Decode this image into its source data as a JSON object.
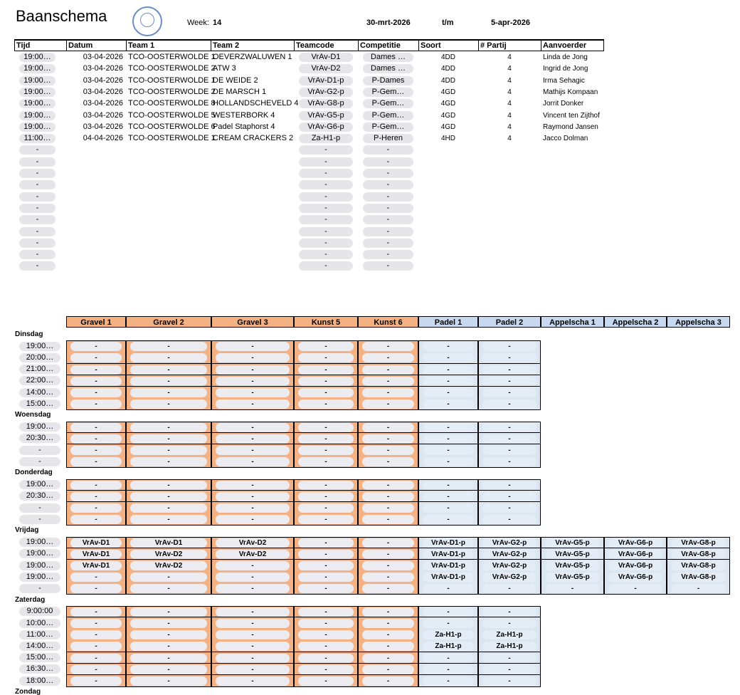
{
  "header": {
    "title": "Baanschema",
    "week_label": "Week:",
    "week": "14",
    "start": "30-mrt-2026",
    "through": "t/m",
    "end": "5-apr-2026"
  },
  "matches": {
    "columns": [
      "Tijd",
      "Datum",
      "Team 1",
      "Team 2",
      "Teamcode",
      "Competitie",
      "Soort",
      "# Partij",
      "Aanvoerder"
    ],
    "rows": [
      [
        "19:00…",
        "03-04-2026",
        "TCO-OOSTERWOLDE 1",
        "OEVERZWALUWEN 1",
        "VrAv-D1",
        "Dames …",
        "4DD",
        4,
        "Linda de Jong"
      ],
      [
        "19:00…",
        "03-04-2026",
        "TCO-OOSTERWOLDE 2",
        "ATW 3",
        "VrAv-D2",
        "Dames …",
        "4DD",
        4,
        "Ingrid de Jong"
      ],
      [
        "19:00…",
        "03-04-2026",
        "TCO-OOSTERWOLDE 1",
        "DE WEIDE 2",
        "VrAv-D1-p",
        "P-Dames",
        "4DD",
        4,
        "Irma Sehagic"
      ],
      [
        "19:00…",
        "03-04-2026",
        "TCO-OOSTERWOLDE 2",
        "DE MARSCH 1",
        "VrAv-G2-p",
        "P-Gem…",
        "4GD",
        4,
        "Mathijs Kompaan"
      ],
      [
        "19:00…",
        "03-04-2026",
        "TCO-OOSTERWOLDE 8",
        "HOLLANDSCHEVELD 4",
        "VrAv-G8-p",
        "P-Gem…",
        "4GD",
        4,
        "Jorrit Donker"
      ],
      [
        "19:00…",
        "03-04-2026",
        "TCO-OOSTERWOLDE 5",
        "WESTERBORK 4",
        "VrAv-G5-p",
        "P-Gem…",
        "4GD",
        4,
        "Vincent ten Zijthof"
      ],
      [
        "19:00…",
        "03-04-2026",
        "TCO-OOSTERWOLDE 6",
        "Padel Staphorst 4",
        "VrAv-G6-p",
        "P-Gem…",
        "4GD",
        4,
        "Raymond Jansen"
      ],
      [
        "11:00…",
        "04-04-2026",
        "TCO-OOSTERWOLDE 1",
        "CREAM CRACKERS 2",
        "Za-H1-p",
        "P-Heren",
        "4HD",
        4,
        "Jacco Dolman"
      ],
      [
        "-",
        null,
        null,
        null,
        "-",
        "-",
        null,
        null,
        null
      ],
      [
        "-",
        null,
        null,
        null,
        "-",
        "-",
        null,
        null,
        null
      ],
      [
        "-",
        null,
        null,
        null,
        "-",
        "-",
        null,
        null,
        null
      ],
      [
        "-",
        null,
        null,
        null,
        "-",
        "-",
        null,
        null,
        null
      ],
      [
        "-",
        null,
        null,
        null,
        "-",
        "-",
        null,
        null,
        null
      ],
      [
        "-",
        null,
        null,
        null,
        "-",
        "-",
        null,
        null,
        null
      ],
      [
        "-",
        null,
        null,
        null,
        "-",
        "-",
        null,
        null,
        null
      ],
      [
        "-",
        null,
        null,
        null,
        "-",
        "-",
        null,
        null,
        null
      ],
      [
        "-",
        null,
        null,
        null,
        "-",
        "-",
        null,
        null,
        null
      ],
      [
        "-",
        null,
        null,
        null,
        "-",
        "-",
        null,
        null,
        null
      ],
      [
        "-",
        null,
        null,
        null,
        "-",
        "-",
        null,
        null,
        null
      ]
    ]
  },
  "schedule": {
    "courts": [
      "Gravel 1",
      "Gravel 2",
      "Gravel 3",
      "Kunst 5",
      "Kunst 6",
      "Padel 1",
      "Padel 2",
      "Appelscha 1",
      "Appelscha 2",
      "Appelscha 3"
    ],
    "days": [
      {
        "name": "Dinsdag",
        "rows": [
          {
            "time": "19:00…",
            "cells": [
              "-",
              "-",
              "-",
              "-",
              "-",
              "-",
              "-"
            ]
          },
          {
            "time": "20:00…",
            "cells": [
              "-",
              "-",
              "-",
              "-",
              "-",
              "-",
              "-"
            ]
          },
          {
            "time": "21:00…",
            "cells": [
              "-",
              "-",
              "-",
              "-",
              "-",
              "-",
              "-"
            ]
          },
          {
            "time": "22:00…",
            "cells": [
              "-",
              "-",
              "-",
              "-",
              "-",
              "-",
              "-"
            ]
          },
          {
            "time": "14:00…",
            "cells": [
              "-",
              "-",
              "-",
              "-",
              "-",
              "-",
              "-"
            ]
          },
          {
            "time": "15:00…",
            "cells": [
              "-",
              "-",
              "-",
              "-",
              "-",
              "-",
              "-"
            ]
          }
        ]
      },
      {
        "name": "Woensdag",
        "rows": [
          {
            "time": "19:00…",
            "cells": [
              "-",
              "-",
              "-",
              "-",
              "-",
              "-",
              "-"
            ]
          },
          {
            "time": "20:30…",
            "cells": [
              "-",
              "-",
              "-",
              "-",
              "-",
              "-",
              "-"
            ]
          },
          {
            "time": "-",
            "cells": [
              "-",
              "-",
              "-",
              "-",
              "-",
              "-",
              "-"
            ]
          },
          {
            "time": "-",
            "cells": [
              "-",
              "-",
              "-",
              "-",
              "-",
              "-",
              "-"
            ]
          }
        ]
      },
      {
        "name": "Donderdag",
        "rows": [
          {
            "time": "19:00…",
            "cells": [
              "-",
              "-",
              "-",
              "-",
              "-",
              "-",
              "-"
            ]
          },
          {
            "time": "20:30…",
            "cells": [
              "-",
              "-",
              "-",
              "-",
              "-",
              "-",
              "-"
            ]
          },
          {
            "time": "-",
            "cells": [
              "-",
              "-",
              "-",
              "-",
              "-",
              "-",
              "-"
            ]
          },
          {
            "time": "-",
            "cells": [
              "-",
              "-",
              "-",
              "-",
              "-",
              "-",
              "-"
            ]
          }
        ]
      },
      {
        "name": "Vrijdag",
        "rows": [
          {
            "time": "19:00…",
            "cells": [
              "VrAv-D1",
              "VrAv-D1",
              "VrAv-D2",
              "-",
              "-",
              "VrAv-D1-p",
              "VrAv-G2-p",
              "VrAv-G5-p",
              "VrAv-G6-p",
              "VrAv-G8-p"
            ]
          },
          {
            "time": "19:00…",
            "cells": [
              "VrAv-D1",
              "VrAv-D2",
              "VrAv-D2",
              "-",
              "-",
              "VrAv-D1-p",
              "VrAv-G2-p",
              "VrAv-G5-p",
              "VrAv-G6-p",
              "VrAv-G8-p"
            ]
          },
          {
            "time": "19:00…",
            "cells": [
              "VrAv-D1",
              "VrAv-D2",
              "-",
              "-",
              "-",
              "VrAv-D1-p",
              "VrAv-G2-p",
              "VrAv-G5-p",
              "VrAv-G6-p",
              "VrAv-G8-p"
            ]
          },
          {
            "time": "19:00…",
            "cells": [
              "-",
              "-",
              "-",
              "-",
              "-",
              "VrAv-D1-p",
              "VrAv-G2-p",
              "VrAv-G5-p",
              "VrAv-G6-p",
              "VrAv-G8-p"
            ]
          },
          {
            "time": "-",
            "cells": [
              "-",
              "-",
              "-",
              "-",
              "-",
              "-",
              "-",
              "-",
              "-",
              "-"
            ]
          }
        ]
      },
      {
        "name": "Zaterdag",
        "rows": [
          {
            "time": "9:00:00",
            "cells": [
              "-",
              "-",
              "-",
              "-",
              "-",
              "-",
              "-"
            ]
          },
          {
            "time": "10:00…",
            "cells": [
              "-",
              "-",
              "-",
              "-",
              "-",
              "-",
              "-"
            ]
          },
          {
            "time": "11:00…",
            "cells": [
              "-",
              "-",
              "-",
              "-",
              "-",
              "Za-H1-p",
              "Za-H1-p"
            ]
          },
          {
            "time": "14:00…",
            "cells": [
              "-",
              "-",
              "-",
              "-",
              "-",
              "Za-H1-p",
              "Za-H1-p"
            ]
          },
          {
            "time": "15:00…",
            "cells": [
              "-",
              "-",
              "-",
              "-",
              "-",
              "-",
              "-"
            ]
          },
          {
            "time": "16:30…",
            "cells": [
              "-",
              "-",
              "-",
              "-",
              "-",
              "-",
              "-"
            ]
          },
          {
            "time": "18:00…",
            "cells": [
              "-",
              "-",
              "-",
              "-",
              "-",
              "-",
              "-"
            ]
          }
        ]
      }
    ],
    "next_day": "Zondag"
  }
}
